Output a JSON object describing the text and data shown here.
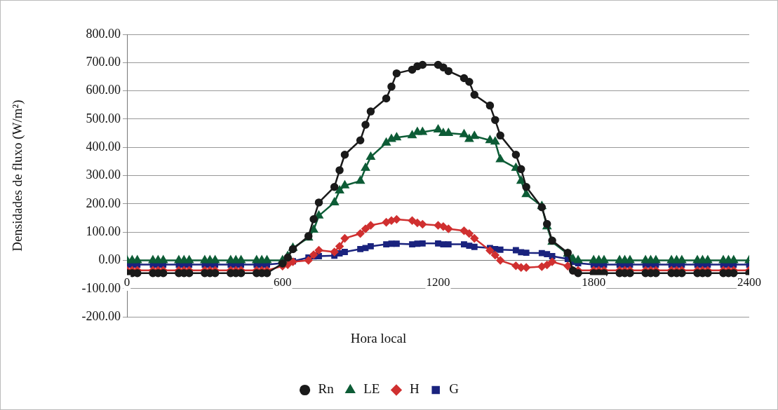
{
  "chart_data": {
    "type": "line",
    "xlabel": "Hora local",
    "ylabel": "Densidades de fluxo (W/m²)",
    "x": [
      0,
      20,
      40,
      100,
      120,
      140,
      200,
      220,
      240,
      300,
      320,
      340,
      400,
      420,
      440,
      500,
      520,
      540,
      600,
      620,
      640,
      700,
      720,
      740,
      800,
      820,
      840,
      900,
      920,
      940,
      1000,
      1020,
      1040,
      1100,
      1120,
      1140,
      1200,
      1220,
      1240,
      1300,
      1320,
      1340,
      1400,
      1420,
      1440,
      1500,
      1520,
      1540,
      1600,
      1620,
      1640,
      1700,
      1720,
      1740,
      1800,
      1820,
      1840,
      1900,
      1920,
      1940,
      2000,
      2020,
      2040,
      2100,
      2120,
      2140,
      2200,
      2220,
      2240,
      2300,
      2320,
      2340,
      2400
    ],
    "series": [
      {
        "name": "Rn",
        "color": "#1a1a1a",
        "marker": "circle",
        "values": [
          -45,
          -45,
          -45,
          -45,
          -45,
          -45,
          -45,
          -45,
          -45,
          -45,
          -45,
          -45,
          -45,
          -45,
          -45,
          -45,
          -45,
          -45,
          -11,
          10,
          40,
          86,
          146,
          205,
          260,
          319,
          374,
          425,
          480,
          527,
          573,
          615,
          662,
          675,
          687,
          692,
          692,
          683,
          670,
          645,
          632,
          586,
          548,
          497,
          442,
          374,
          323,
          260,
          188,
          129,
          70,
          27,
          -36,
          -45,
          -45,
          -45,
          -45,
          -45,
          -45,
          -45,
          -45,
          -45,
          -45,
          -45,
          -45,
          -45,
          -45,
          -45,
          -45,
          -45,
          -45,
          -45,
          -45
        ]
      },
      {
        "name": "LE",
        "color": "#0d5c36",
        "marker": "triangle",
        "values": [
          0,
          0,
          0,
          0,
          0,
          0,
          0,
          0,
          0,
          0,
          0,
          0,
          0,
          0,
          0,
          0,
          0,
          0,
          0,
          15,
          44,
          80,
          108,
          158,
          205,
          247,
          265,
          281,
          327,
          366,
          416,
          429,
          435,
          442,
          454,
          454,
          463,
          450,
          450,
          446,
          429,
          440,
          425,
          420,
          357,
          327,
          281,
          234,
          192,
          120,
          65,
          23,
          5,
          0,
          0,
          0,
          0,
          0,
          0,
          0,
          0,
          0,
          0,
          0,
          0,
          0,
          0,
          0,
          0,
          0,
          0,
          0,
          0
        ]
      },
      {
        "name": "H",
        "color": "#d03030",
        "marker": "diamond",
        "values": [
          -35,
          -35,
          -35,
          -35,
          -35,
          -35,
          -35,
          -35,
          -35,
          -35,
          -35,
          -35,
          -35,
          -35,
          -35,
          -35,
          -35,
          -35,
          -20,
          -15,
          -5,
          0,
          20,
          36,
          30,
          50,
          78,
          95,
          112,
          124,
          135,
          141,
          145,
          141,
          133,
          128,
          124,
          120,
          112,
          105,
          95,
          78,
          35,
          19,
          0,
          -19,
          -25,
          -25,
          -22,
          -16,
          -5,
          -20,
          -35,
          -35,
          -35,
          -35,
          -35,
          -35,
          -35,
          -35,
          -35,
          -35,
          -35,
          -35,
          -35,
          -35,
          -35,
          -35,
          -35,
          -35,
          -35,
          -35,
          -35
        ]
      },
      {
        "name": "G",
        "color": "#1a237e",
        "marker": "square",
        "values": [
          -15,
          -15,
          -15,
          -15,
          -15,
          -15,
          -15,
          -15,
          -15,
          -15,
          -15,
          -15,
          -15,
          -15,
          -15,
          -15,
          -15,
          -15,
          -10,
          -5,
          -3,
          10,
          14,
          15,
          17,
          25,
          30,
          40,
          44,
          50,
          57,
          59,
          59,
          57,
          59,
          60,
          60,
          57,
          57,
          57,
          52,
          48,
          44,
          40,
          38,
          36,
          29,
          27,
          26,
          22,
          15,
          5,
          -5,
          -10,
          -15,
          -15,
          -15,
          -15,
          -15,
          -15,
          -15,
          -15,
          -15,
          -15,
          -15,
          -15,
          -15,
          -15,
          -15,
          -15,
          -15,
          -15,
          -15
        ]
      }
    ],
    "xlim": [
      0,
      2400
    ],
    "xticks": [
      0,
      600,
      1200,
      1800,
      2400
    ],
    "ylim": [
      -200,
      800
    ],
    "yticks": [
      {
        "value": -200,
        "label": "-200.00"
      },
      {
        "value": -100,
        "label": "-100.00"
      },
      {
        "value": 0,
        "label": "0.00"
      },
      {
        "value": 100,
        "label": "100.00"
      },
      {
        "value": 200,
        "label": "200.00"
      },
      {
        "value": 300,
        "label": "300.00"
      },
      {
        "value": 400,
        "label": "400.00"
      },
      {
        "value": 500,
        "label": "500.00"
      },
      {
        "value": 600,
        "label": "600.00"
      },
      {
        "value": 700,
        "label": "700.00"
      },
      {
        "value": 800,
        "label": "800.00"
      }
    ],
    "grid": "y",
    "legend": "bottom",
    "line_style": "solid"
  }
}
